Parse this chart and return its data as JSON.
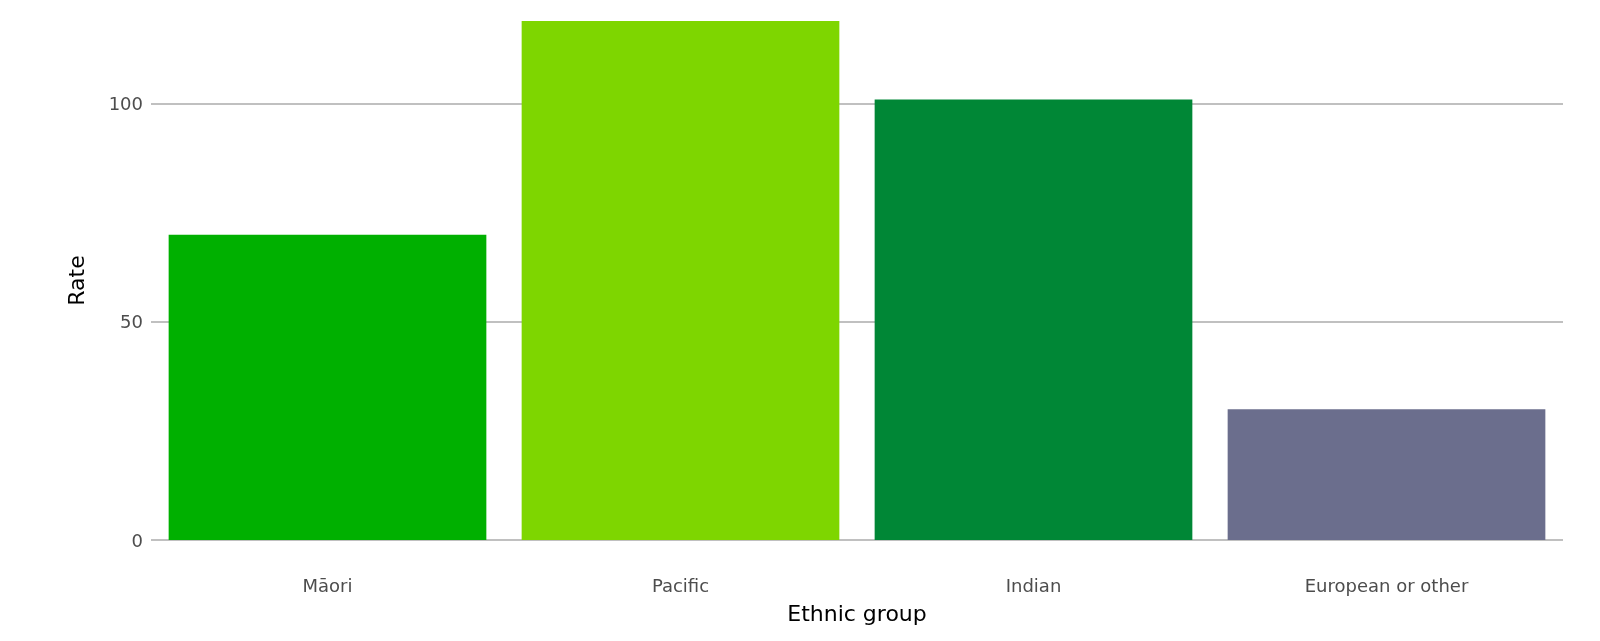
{
  "chart_data": {
    "type": "bar",
    "xlabel": "Ethnic group",
    "ylabel": "Rate",
    "categories": [
      "Māori",
      "Pacific",
      "Indian",
      "European or other"
    ],
    "values": [
      70,
      119,
      101,
      30
    ],
    "colors": [
      "#00b000",
      "#7ed600",
      "#008736",
      "#6b6e8d"
    ],
    "ylim": [
      0,
      119
    ],
    "yticks": [
      0,
      50,
      100
    ],
    "grid": "y"
  }
}
